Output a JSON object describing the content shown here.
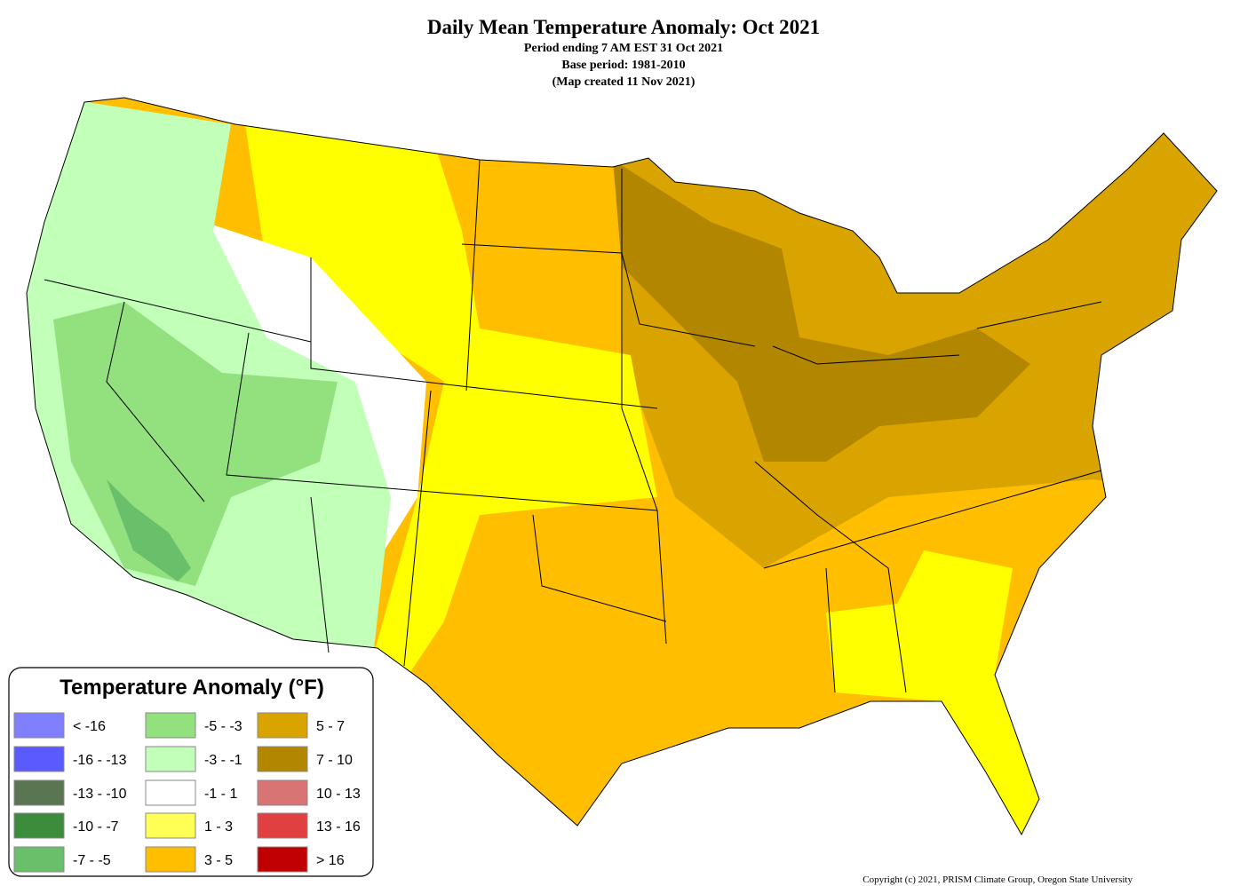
{
  "header": {
    "title": "Daily Mean Temperature Anomaly: Oct 2021",
    "lines": [
      "Period ending 7 AM EST 31 Oct 2021",
      "Base period: 1981-2010",
      "(Map created 11 Nov 2021)"
    ]
  },
  "legend": {
    "title": "Temperature Anomaly (°F)",
    "items": [
      {
        "label": "< -16",
        "color": "#8080ff"
      },
      {
        "label": "-16 - -13",
        "color": "#5a5aff"
      },
      {
        "label": "-13 - -10",
        "color": "#5a7552"
      },
      {
        "label": "-10 - -7",
        "color": "#3c8c3c"
      },
      {
        "label": "-7 - -5",
        "color": "#6ac06a"
      },
      {
        "label": "-5 - -3",
        "color": "#93e07f"
      },
      {
        "label": "-3 - -1",
        "color": "#c2ffb8"
      },
      {
        "label": "-1 - 1",
        "color": "#ffffff"
      },
      {
        "label": "1 - 3",
        "color": "#ffff55"
      },
      {
        "label": "3 - 5",
        "color": "#ffbf00"
      },
      {
        "label": "5 - 7",
        "color": "#d9a300"
      },
      {
        "label": "7 - 10",
        "color": "#b38600"
      },
      {
        "label": "10 - 13",
        "color": "#d87474"
      },
      {
        "label": "13 - 16",
        "color": "#e04040"
      },
      {
        "label": "> 16",
        "color": "#c00000"
      }
    ]
  },
  "copyright": "Copyright (c) 2021, PRISM Climate Group, Oregon State University"
}
